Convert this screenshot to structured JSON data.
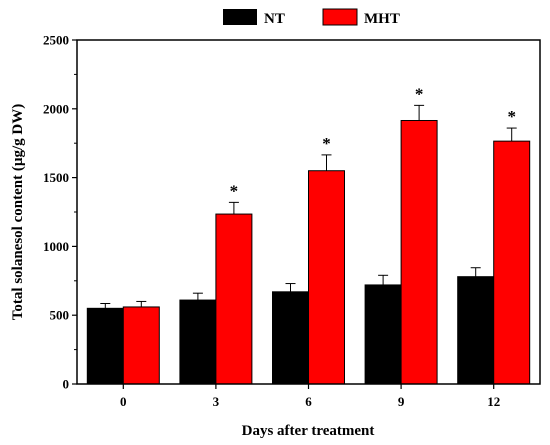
{
  "chart_data": {
    "type": "bar",
    "categories": [
      "0",
      "3",
      "6",
      "9",
      "12"
    ],
    "series": [
      {
        "name": "NT",
        "color": "#000000",
        "values": [
          550,
          610,
          670,
          720,
          780
        ],
        "errors": [
          35,
          50,
          60,
          70,
          65
        ]
      },
      {
        "name": "MHT",
        "color": "#ff0000",
        "values": [
          560,
          1235,
          1550,
          1915,
          1765
        ],
        "errors": [
          40,
          85,
          115,
          110,
          95
        ]
      }
    ],
    "significance": [
      "",
      "*",
      "*",
      "*",
      "*"
    ],
    "xlabel": "Days after treatment",
    "ylabel": "Total solanesol content (µg/g DW)",
    "ylim": [
      0,
      2500
    ],
    "yticks": [
      "0",
      "500",
      "1000",
      "1500",
      "2000",
      "2500"
    ],
    "grid": false,
    "legend_position": "top-center"
  }
}
